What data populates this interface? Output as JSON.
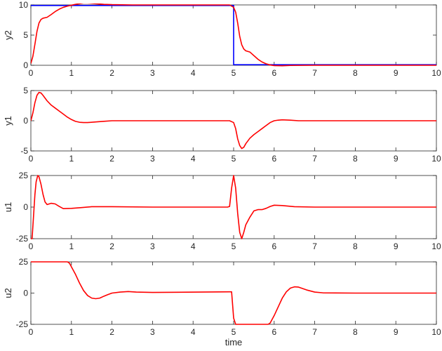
{
  "chart_data": [
    {
      "type": "line",
      "ylabel": "y2",
      "xlim": [
        0,
        10
      ],
      "ylim": [
        0,
        10
      ],
      "xticks": [
        "0",
        "1",
        "2",
        "3",
        "4",
        "5",
        "6",
        "7",
        "8",
        "9",
        "10"
      ],
      "yticks": [
        "0",
        "5",
        "10"
      ],
      "series": [
        {
          "color": "#0000ff",
          "x": [
            0,
            4.99,
            4.99,
            5.0,
            5.0,
            10
          ],
          "y": [
            9.9,
            9.9,
            9.9,
            9.9,
            0.1,
            0.1
          ]
        },
        {
          "color": "#ff0000",
          "x": [
            0,
            0.05,
            0.1,
            0.15,
            0.2,
            0.25,
            0.3,
            0.4,
            0.5,
            0.6,
            0.7,
            0.8,
            0.9,
            1.0,
            1.1,
            1.2,
            1.3,
            1.4,
            1.6,
            1.8,
            2.0,
            2.5,
            3.0,
            4.0,
            4.9,
            5.0,
            5.05,
            5.1,
            5.15,
            5.2,
            5.25,
            5.3,
            5.4,
            5.5,
            5.6,
            5.7,
            5.8,
            5.9,
            6.0,
            6.2,
            6.4,
            7.0,
            8.0,
            10
          ],
          "y": [
            0.3,
            1.5,
            3.5,
            5.6,
            7.0,
            7.6,
            7.8,
            7.95,
            8.4,
            8.9,
            9.3,
            9.6,
            9.8,
            9.95,
            10.1,
            10.2,
            10.3,
            10.3,
            10.2,
            10.1,
            10.05,
            10.0,
            10.0,
            10.0,
            10.0,
            9.6,
            8.8,
            7.0,
            4.8,
            3.4,
            2.7,
            2.4,
            2.2,
            1.6,
            1.0,
            0.55,
            0.25,
            0.05,
            -0.05,
            -0.08,
            -0.03,
            0.0,
            0.0,
            0.0
          ]
        }
      ]
    },
    {
      "type": "line",
      "ylabel": "y1",
      "xlim": [
        0,
        10
      ],
      "ylim": [
        -5,
        5
      ],
      "xticks": [
        "0",
        "1",
        "2",
        "3",
        "4",
        "5",
        "6",
        "7",
        "8",
        "9",
        "10"
      ],
      "yticks": [
        "-5",
        "0",
        "5"
      ],
      "series": [
        {
          "color": "#ff0000",
          "x": [
            0,
            0.05,
            0.1,
            0.15,
            0.2,
            0.25,
            0.3,
            0.4,
            0.5,
            0.6,
            0.7,
            0.8,
            0.9,
            1.0,
            1.1,
            1.2,
            1.3,
            1.4,
            1.6,
            1.8,
            2.0,
            2.5,
            3.0,
            4.9,
            5.0,
            5.05,
            5.1,
            5.15,
            5.2,
            5.25,
            5.3,
            5.4,
            5.5,
            5.6,
            5.7,
            5.8,
            5.9,
            6.0,
            6.1,
            6.2,
            6.4,
            6.6,
            7.0,
            10
          ],
          "y": [
            0.0,
            1.3,
            3.0,
            4.2,
            4.7,
            4.6,
            4.2,
            3.3,
            2.6,
            2.1,
            1.6,
            1.1,
            0.6,
            0.2,
            -0.1,
            -0.25,
            -0.3,
            -0.3,
            -0.2,
            -0.1,
            0.0,
            0.0,
            0.0,
            0.0,
            -0.3,
            -1.3,
            -3.0,
            -4.1,
            -4.6,
            -4.4,
            -3.8,
            -2.9,
            -2.3,
            -1.8,
            -1.3,
            -0.8,
            -0.3,
            0.0,
            0.1,
            0.15,
            0.1,
            0.0,
            0.0,
            0.0
          ]
        }
      ]
    },
    {
      "type": "line",
      "ylabel": "u1",
      "xlim": [
        0,
        10
      ],
      "ylim": [
        -25,
        25
      ],
      "xticks": [
        "0",
        "1",
        "2",
        "3",
        "4",
        "5",
        "6",
        "7",
        "8",
        "9",
        "10"
      ],
      "yticks": [
        "-25",
        "0",
        "25"
      ],
      "series": [
        {
          "color": "#ff0000",
          "x": [
            0,
            0.03,
            0.06,
            0.1,
            0.13,
            0.17,
            0.2,
            0.25,
            0.3,
            0.35,
            0.4,
            0.45,
            0.5,
            0.6,
            0.7,
            0.8,
            1.0,
            1.2,
            1.5,
            2.0,
            3.0,
            4.85,
            4.9,
            4.95,
            5.0,
            5.05,
            5.1,
            5.15,
            5.2,
            5.25,
            5.3,
            5.4,
            5.5,
            5.6,
            5.7,
            5.8,
            5.9,
            6.0,
            6.2,
            6.5,
            7.0,
            10
          ],
          "y": [
            -25,
            -25,
            -10,
            10,
            20,
            25,
            24,
            18,
            10,
            4,
            2,
            2.5,
            3,
            2.5,
            0.5,
            -1.2,
            -1.0,
            -0.5,
            0.3,
            0.3,
            0.0,
            0.0,
            0.5,
            15,
            25,
            15,
            -5,
            -20,
            -25,
            -20,
            -14,
            -8,
            -3,
            -2,
            -2,
            -1,
            0.5,
            1.5,
            1.2,
            0.3,
            0.0,
            0.0
          ]
        }
      ]
    },
    {
      "type": "line",
      "ylabel": "u2",
      "xlabel": "time",
      "xlim": [
        0,
        10
      ],
      "ylim": [
        -25,
        25
      ],
      "xticks": [
        "0",
        "1",
        "2",
        "3",
        "4",
        "5",
        "6",
        "7",
        "8",
        "9",
        "10"
      ],
      "yticks": [
        "-25",
        "0",
        "25"
      ],
      "series": [
        {
          "color": "#ff0000",
          "x": [
            0,
            0.9,
            0.95,
            1.0,
            1.1,
            1.2,
            1.3,
            1.4,
            1.5,
            1.6,
            1.7,
            1.8,
            1.9,
            2.0,
            2.2,
            2.4,
            2.6,
            3.0,
            4.9,
            4.95,
            5.0,
            5.05,
            5.8,
            5.85,
            5.9,
            6.0,
            6.1,
            6.2,
            6.3,
            6.4,
            6.5,
            6.6,
            6.8,
            7.0,
            7.2,
            7.5,
            8.0,
            10
          ],
          "y": [
            25,
            25,
            24,
            21,
            15,
            8,
            2,
            -2,
            -4,
            -4.5,
            -4,
            -2.5,
            -1.2,
            0,
            0.8,
            1.2,
            0.8,
            0.5,
            1.0,
            1.0,
            -20,
            -25,
            -25,
            -25,
            -24,
            -18,
            -11,
            -4,
            1,
            4,
            5,
            4.8,
            2.5,
            0.8,
            0.2,
            0.1,
            0.0,
            0.0
          ]
        }
      ]
    }
  ]
}
